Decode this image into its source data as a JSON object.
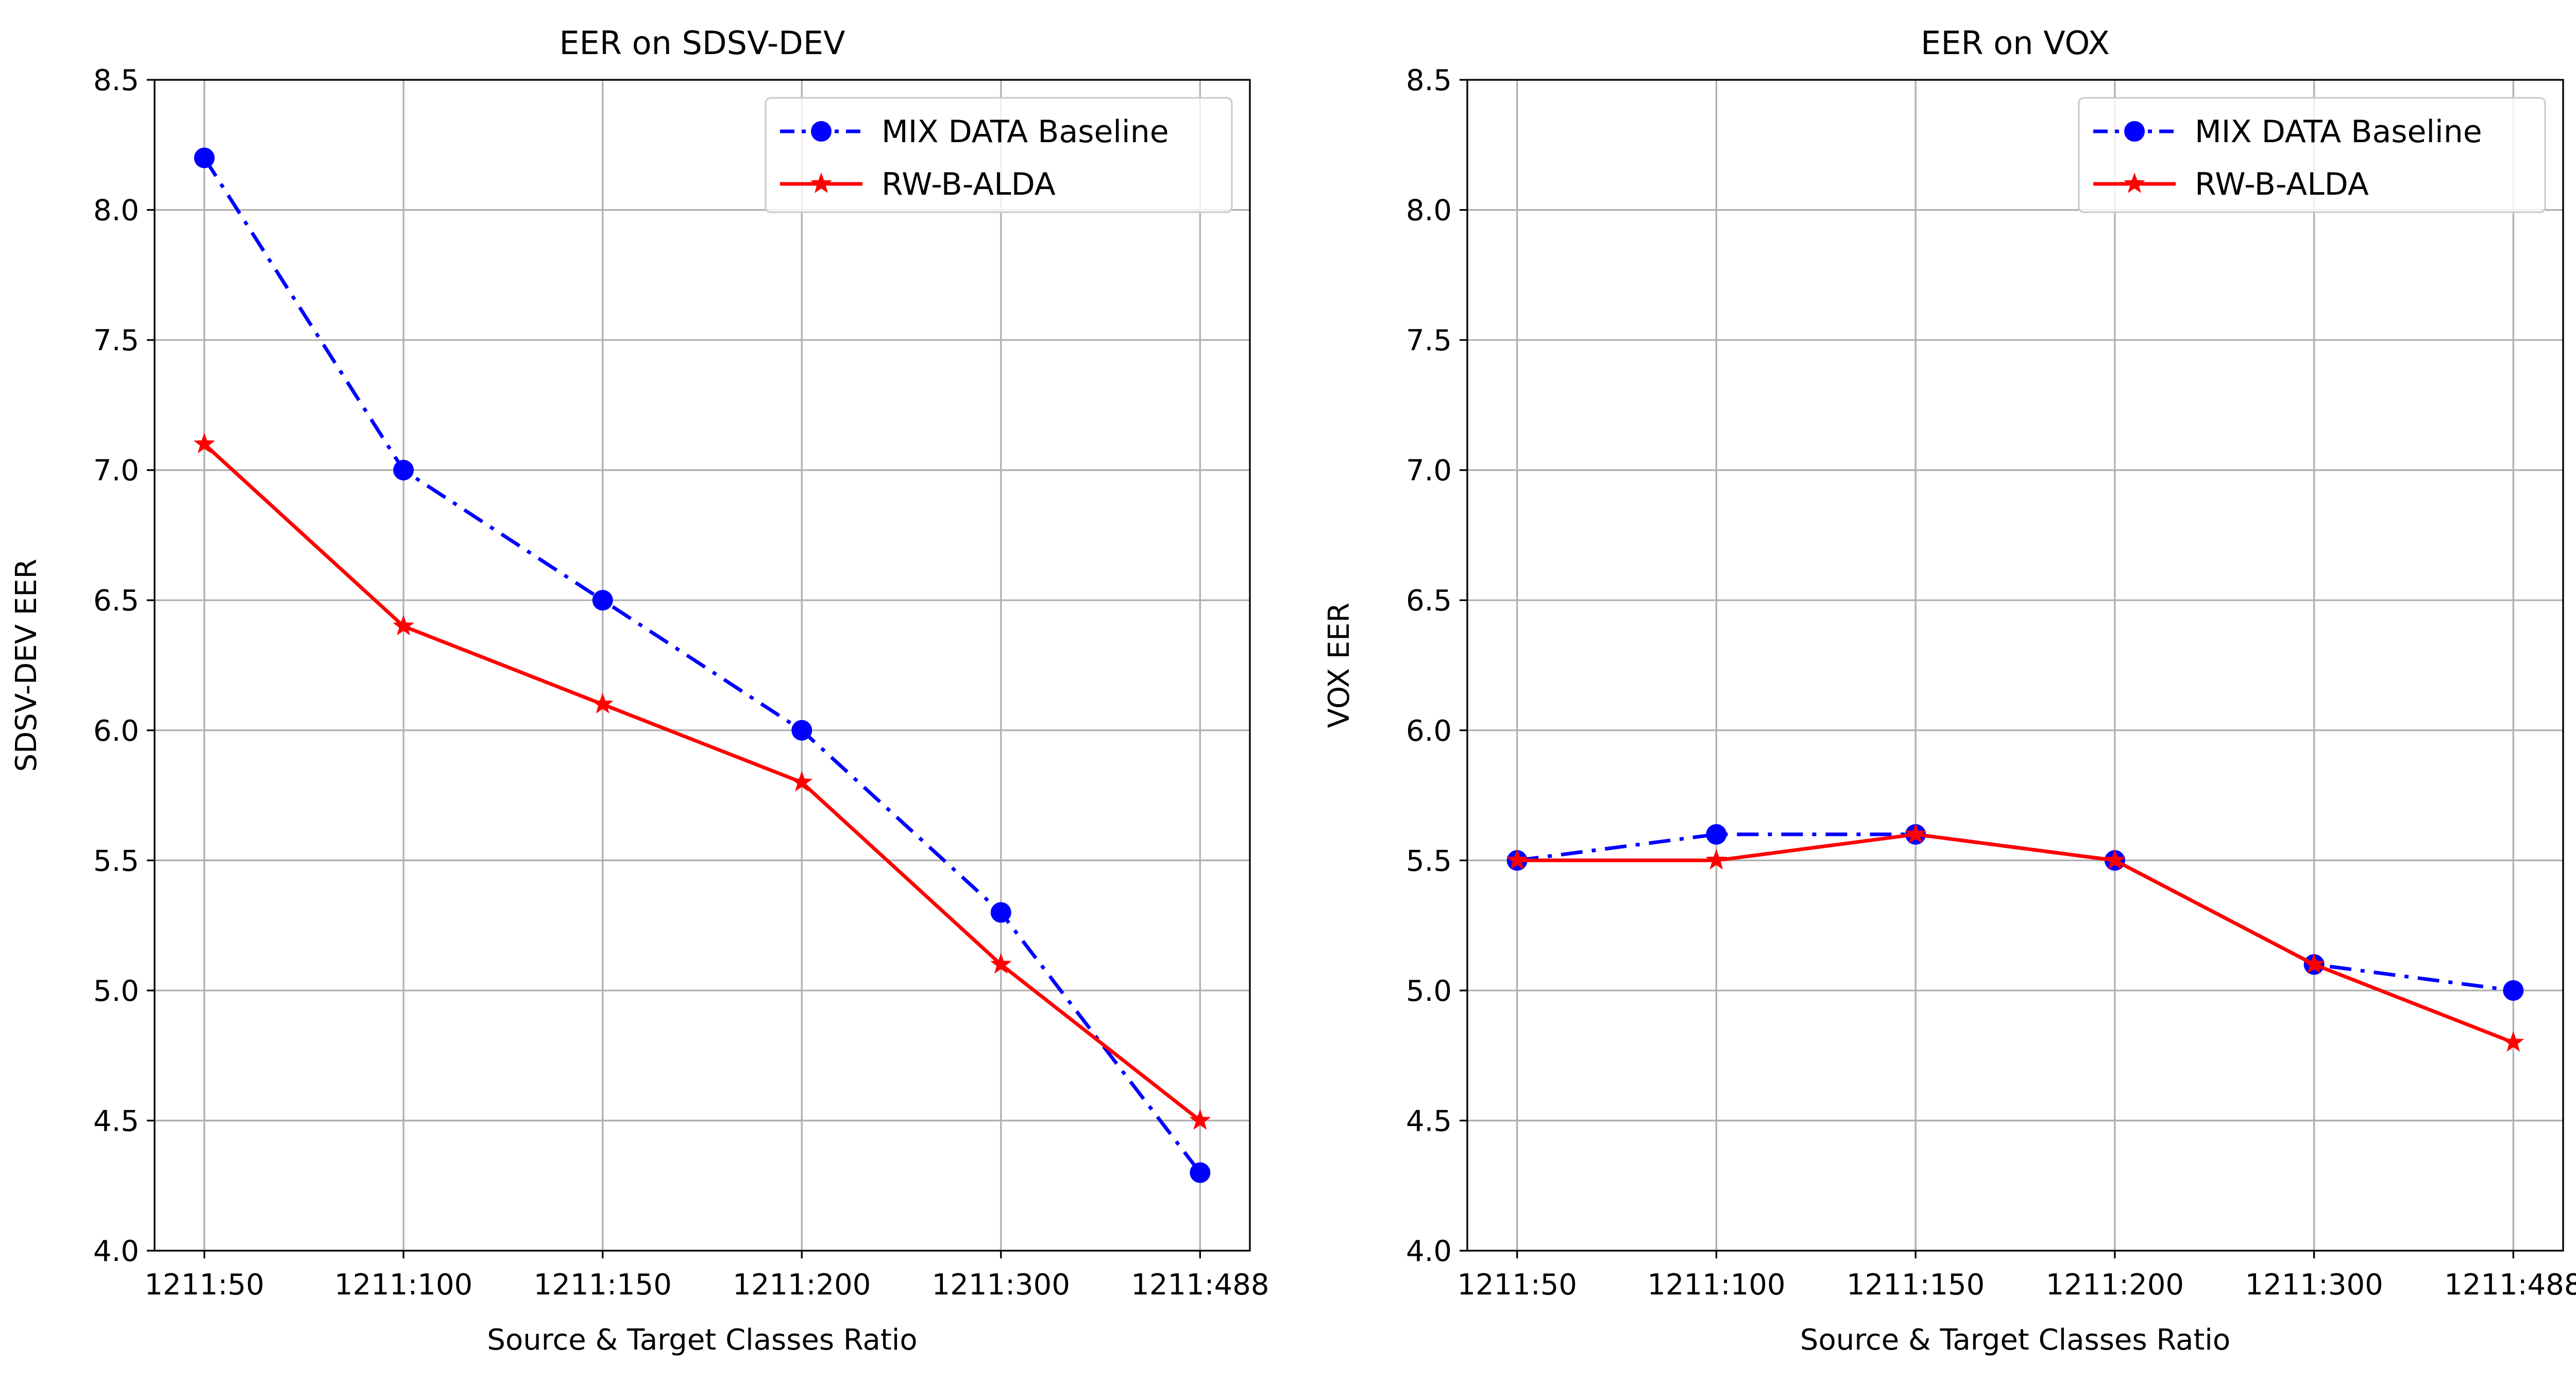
{
  "chart_data": [
    {
      "type": "line",
      "title": "EER on SDSV-DEV",
      "xlabel": "Source & Target Classes Ratio",
      "ylabel": "SDSV-DEV EER",
      "categories": [
        "1211:50",
        "1211:100",
        "1211:150",
        "1211:200",
        "1211:300",
        "1211:488"
      ],
      "ylim": [
        4.0,
        8.5
      ],
      "yticks": [
        "4.0",
        "4.5",
        "5.0",
        "5.5",
        "6.0",
        "6.5",
        "7.0",
        "7.5",
        "8.0",
        "8.5"
      ],
      "grid": true,
      "legend": "upper right",
      "series": [
        {
          "name": "MIX DATA Baseline",
          "values": [
            8.2,
            7.0,
            6.5,
            6.0,
            5.3,
            4.3
          ],
          "color": "#0000ff",
          "marker": "circle",
          "line_style": "dash-dot"
        },
        {
          "name": "RW-B-ALDA",
          "values": [
            7.1,
            6.4,
            6.1,
            5.8,
            5.1,
            4.5
          ],
          "color": "#ff0000",
          "marker": "star",
          "line_style": "solid"
        }
      ]
    },
    {
      "type": "line",
      "title": "EER on VOX",
      "xlabel": "Source & Target Classes Ratio",
      "ylabel": "VOX EER",
      "categories": [
        "1211:50",
        "1211:100",
        "1211:150",
        "1211:200",
        "1211:300",
        "1211:488"
      ],
      "ylim": [
        4.0,
        8.5
      ],
      "yticks": [
        "4.0",
        "4.5",
        "5.0",
        "5.5",
        "6.0",
        "6.5",
        "7.0",
        "7.5",
        "8.0",
        "8.5"
      ],
      "grid": true,
      "legend": "upper right",
      "series": [
        {
          "name": "MIX DATA Baseline",
          "values": [
            5.5,
            5.6,
            5.6,
            5.5,
            5.1,
            5.0
          ],
          "color": "#0000ff",
          "marker": "circle",
          "line_style": "dash-dot"
        },
        {
          "name": "RW-B-ALDA",
          "values": [
            5.5,
            5.5,
            5.6,
            5.5,
            5.1,
            4.8
          ],
          "color": "#ff0000",
          "marker": "star",
          "line_style": "solid"
        }
      ]
    }
  ]
}
